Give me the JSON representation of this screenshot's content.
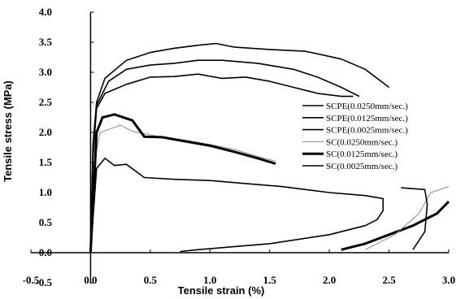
{
  "chart_data": {
    "type": "line",
    "xlabel": "Tensile strain (%)",
    "ylabel": "Tensile stress (MPa)",
    "xlim": [
      -0.5,
      3.0
    ],
    "ylim": [
      -0.5,
      4.0
    ],
    "x_ticks": [
      "-0.5",
      "0.0",
      "0.5",
      "1.0",
      "1.5",
      "2.0",
      "2.5",
      "3.0"
    ],
    "y_ticks": [
      "-0.5",
      "0.0",
      "0.5",
      "1.0",
      "1.5",
      "2.0",
      "2.5",
      "3.0",
      "3.5",
      "4.0"
    ],
    "grid": false,
    "legend_position": "right",
    "series": [
      {
        "name": "SCPE(0.0250mm/sec.)",
        "color": "#000000",
        "line_weight": "medium",
        "points": [
          [
            0,
            0
          ],
          [
            0.02,
            1.8
          ],
          [
            0.05,
            2.5
          ],
          [
            0.12,
            2.9
          ],
          [
            0.3,
            3.2
          ],
          [
            0.5,
            3.33
          ],
          [
            0.7,
            3.4
          ],
          [
            0.9,
            3.45
          ],
          [
            1.05,
            3.48
          ],
          [
            1.2,
            3.42
          ],
          [
            1.5,
            3.38
          ],
          [
            1.8,
            3.35
          ],
          [
            2.1,
            3.22
          ],
          [
            2.3,
            3.05
          ],
          [
            2.5,
            2.75
          ]
        ]
      },
      {
        "name": "SCPE(0.0125mm/sec.)",
        "color": "#000000",
        "line_weight": "medium",
        "points": [
          [
            0,
            0
          ],
          [
            0.02,
            1.7
          ],
          [
            0.05,
            2.45
          ],
          [
            0.15,
            2.85
          ],
          [
            0.3,
            3.05
          ],
          [
            0.5,
            3.12
          ],
          [
            0.7,
            3.15
          ],
          [
            0.9,
            3.2
          ],
          [
            1.1,
            3.2
          ],
          [
            1.4,
            3.15
          ],
          [
            1.7,
            3.05
          ],
          [
            1.9,
            2.92
          ],
          [
            2.1,
            2.75
          ],
          [
            2.25,
            2.6
          ]
        ]
      },
      {
        "name": "SCPE(0.0025mm/sec.)",
        "color": "#000000",
        "line_weight": "medium",
        "points": [
          [
            0,
            0
          ],
          [
            0.02,
            1.6
          ],
          [
            0.05,
            2.4
          ],
          [
            0.12,
            2.65
          ],
          [
            0.3,
            2.8
          ],
          [
            0.5,
            2.92
          ],
          [
            0.7,
            2.93
          ],
          [
            0.9,
            2.97
          ],
          [
            1.1,
            2.9
          ],
          [
            1.3,
            2.92
          ],
          [
            1.5,
            2.85
          ],
          [
            1.7,
            2.75
          ],
          [
            1.9,
            2.65
          ],
          [
            2.1,
            2.6
          ],
          [
            2.2,
            2.6
          ]
        ]
      },
      {
        "name": "SC(0.0250mm/sec.)",
        "color": "#8a8a8a",
        "line_weight": "thin",
        "points": [
          [
            0,
            0
          ],
          [
            0.03,
            1.5
          ],
          [
            0.08,
            2.0
          ],
          [
            0.15,
            2.05
          ],
          [
            0.25,
            2.12
          ],
          [
            0.35,
            2.02
          ],
          [
            0.45,
            1.98
          ],
          [
            0.6,
            1.92
          ],
          [
            0.8,
            1.87
          ],
          [
            1.0,
            1.8
          ],
          [
            1.2,
            1.72
          ],
          [
            1.4,
            1.6
          ],
          [
            1.55,
            1.52
          ]
        ]
      },
      {
        "name": "SC(0.0125mm/sec.)",
        "color": "#000000",
        "line_weight": "thick",
        "points": [
          [
            0,
            0
          ],
          [
            0.05,
            2.0
          ],
          [
            0.1,
            2.25
          ],
          [
            0.2,
            2.3
          ],
          [
            0.35,
            2.2
          ],
          [
            0.45,
            1.93
          ],
          [
            0.6,
            1.92
          ],
          [
            0.8,
            1.85
          ],
          [
            1.0,
            1.78
          ],
          [
            1.2,
            1.68
          ],
          [
            1.4,
            1.57
          ],
          [
            1.55,
            1.48
          ]
        ]
      },
      {
        "name": "SC(0.0025mm/sec.)",
        "color": "#000000",
        "line_weight": "medium",
        "points": [
          [
            0,
            0
          ],
          [
            0.05,
            1.4
          ],
          [
            0.12,
            1.57
          ],
          [
            0.2,
            1.45
          ],
          [
            0.3,
            1.47
          ],
          [
            0.45,
            1.25
          ],
          [
            0.7,
            1.22
          ],
          [
            1.0,
            1.2
          ],
          [
            1.3,
            1.15
          ],
          [
            1.6,
            1.1
          ],
          [
            2.0,
            1.0
          ],
          [
            2.3,
            0.95
          ],
          [
            2.45,
            0.9
          ],
          [
            2.45,
            0.7
          ],
          [
            2.4,
            0.55
          ],
          [
            2.3,
            0.45
          ],
          [
            2.0,
            0.3
          ],
          [
            1.5,
            0.15
          ],
          [
            1.2,
            0.1
          ],
          [
            0.9,
            0.05
          ],
          [
            0.75,
            0.02
          ]
        ]
      },
      {
        "name": "",
        "color": "#000000",
        "line_weight": "thick",
        "points": [
          [
            2.1,
            0.05
          ],
          [
            2.3,
            0.15
          ],
          [
            2.5,
            0.3
          ],
          [
            2.7,
            0.45
          ],
          [
            2.9,
            0.65
          ],
          [
            3.0,
            0.85
          ]
        ]
      },
      {
        "name": "",
        "color": "#8a8a8a",
        "line_weight": "thin",
        "points": [
          [
            2.3,
            0.05
          ],
          [
            2.55,
            0.3
          ],
          [
            2.75,
            0.65
          ],
          [
            2.85,
            1.0
          ],
          [
            3.0,
            1.1
          ]
        ]
      },
      {
        "name": "",
        "color": "#000000",
        "line_weight": "medium",
        "points": [
          [
            2.7,
            0.05
          ],
          [
            2.8,
            0.35
          ],
          [
            2.82,
            0.8
          ],
          [
            2.8,
            1.05
          ],
          [
            2.6,
            1.08
          ]
        ]
      }
    ]
  },
  "colors": {
    "axis": "#000000",
    "dark_line": "#000000",
    "gray_line": "#8a8a8a"
  }
}
